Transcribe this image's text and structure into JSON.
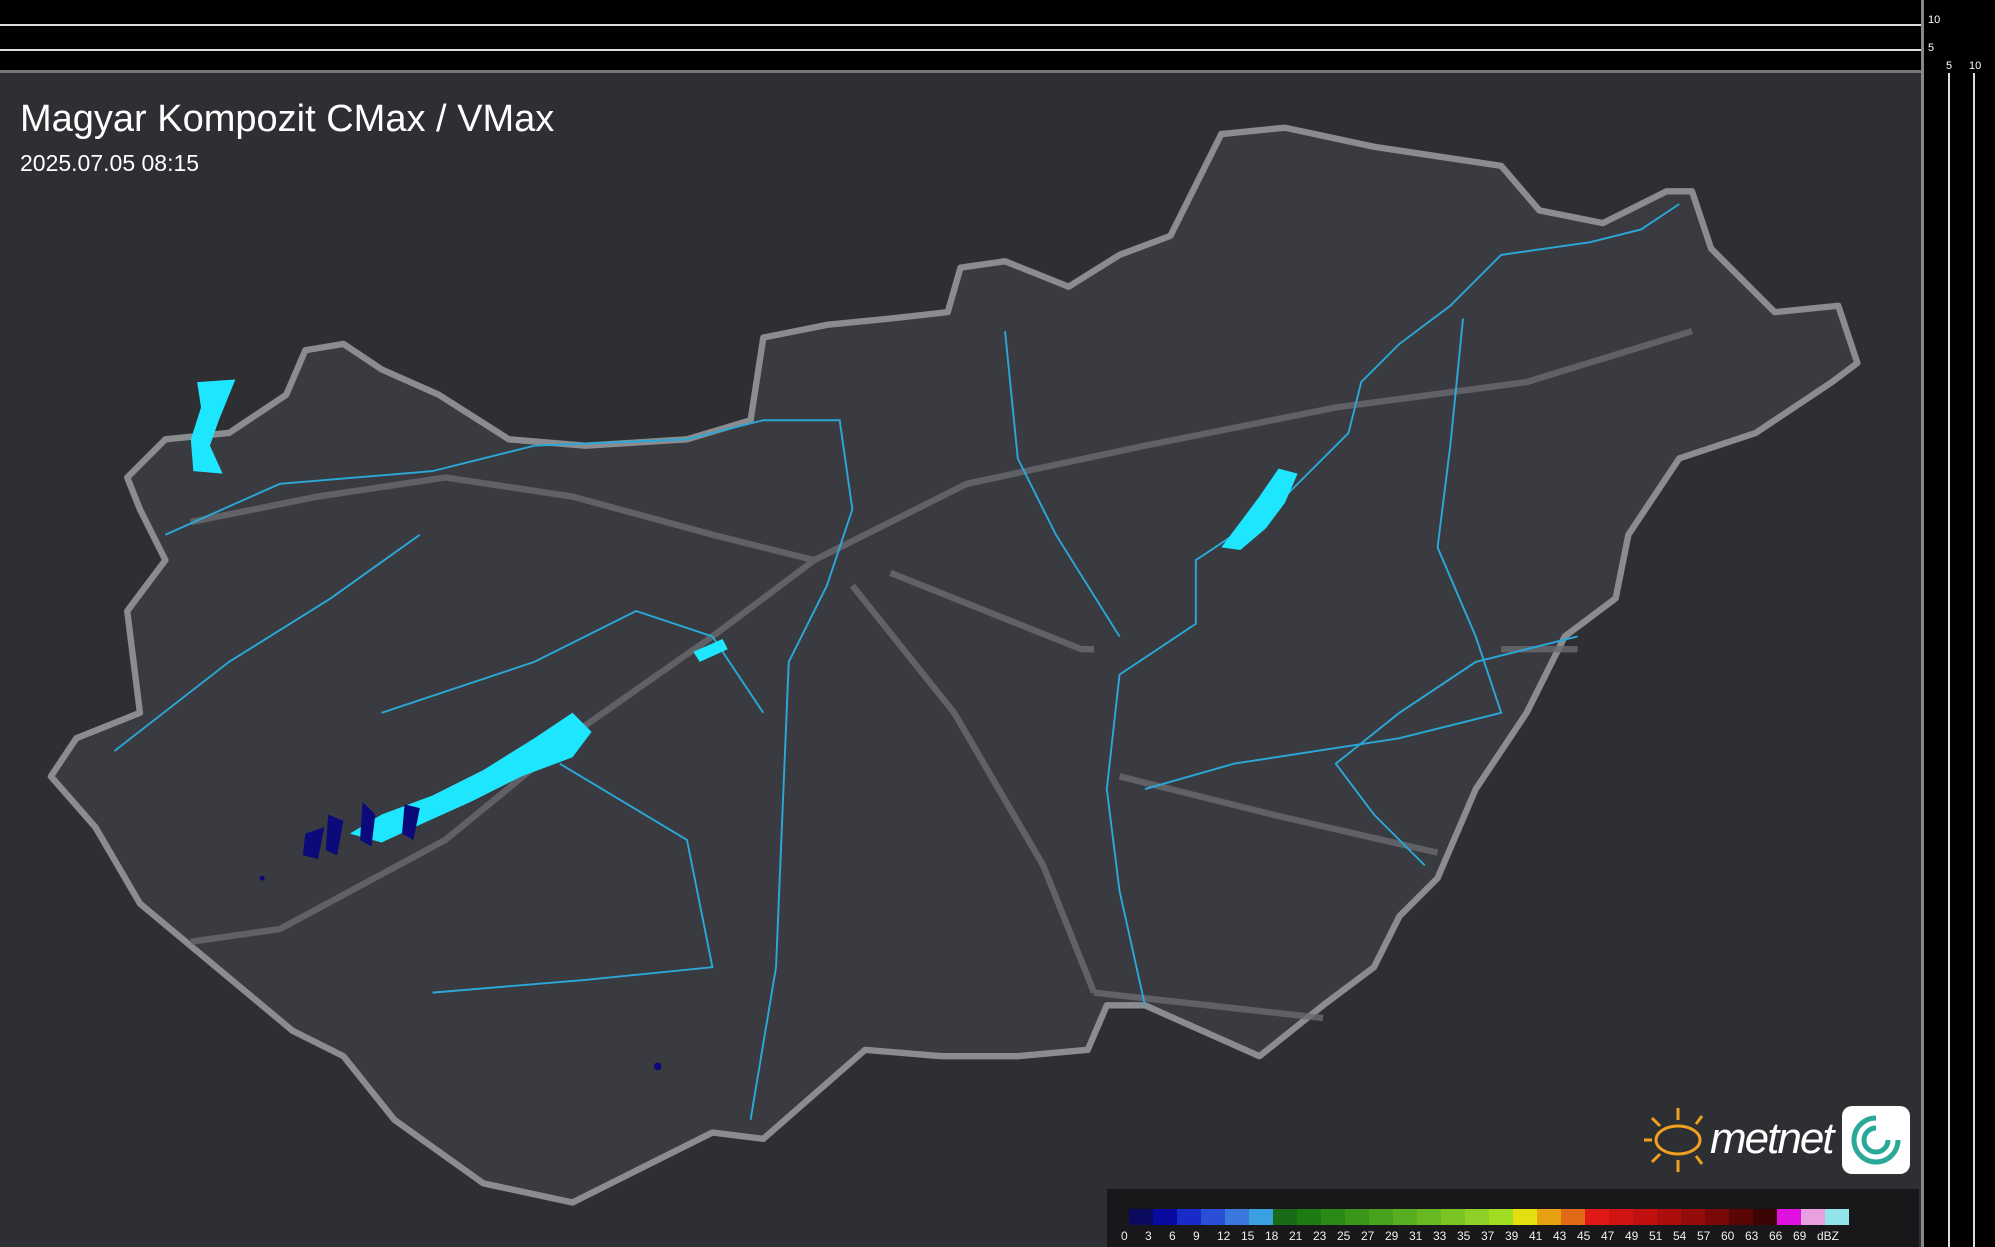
{
  "title": "Magyar Kompozit CMax / VMax",
  "datetime": "2025.07.05 08:15",
  "side_axis": {
    "top_ticks": [
      "10",
      "5"
    ],
    "right_ticks": [
      "5",
      "10"
    ]
  },
  "logo": {
    "text": "metnet"
  },
  "legend": {
    "unit": "dBZ",
    "labels": [
      "0",
      "3",
      "6",
      "9",
      "12",
      "15",
      "18",
      "21",
      "23",
      "25",
      "27",
      "29",
      "31",
      "33",
      "35",
      "37",
      "39",
      "41",
      "43",
      "45",
      "47",
      "49",
      "51",
      "54",
      "57",
      "60",
      "63",
      "66",
      "69"
    ],
    "colors": [
      "#0a0a5e",
      "#0a0aa0",
      "#1a2ac8",
      "#2a4ed8",
      "#3a78de",
      "#3aa0e0",
      "#1a6a1a",
      "#1e7a12",
      "#2a8a16",
      "#3a961a",
      "#48a21e",
      "#58ae20",
      "#68b822",
      "#7ac424",
      "#8ed028",
      "#a0dc20",
      "#e4e010",
      "#e6a010",
      "#e06a18",
      "#e01818",
      "#d01414",
      "#c01010",
      "#ac0e0e",
      "#940c0c",
      "#7a0808",
      "#5a0606",
      "#3a0404",
      "#e010e0",
      "#e8a0e0",
      "#90e4ea"
    ]
  },
  "colors": {
    "background": "#2e2f33",
    "lakes": "#1ee6ff",
    "rivers": "#2aa8d8",
    "border": "#8a8c90",
    "roads": "#6a6c70",
    "precip_dark": "#0a0a7a"
  }
}
